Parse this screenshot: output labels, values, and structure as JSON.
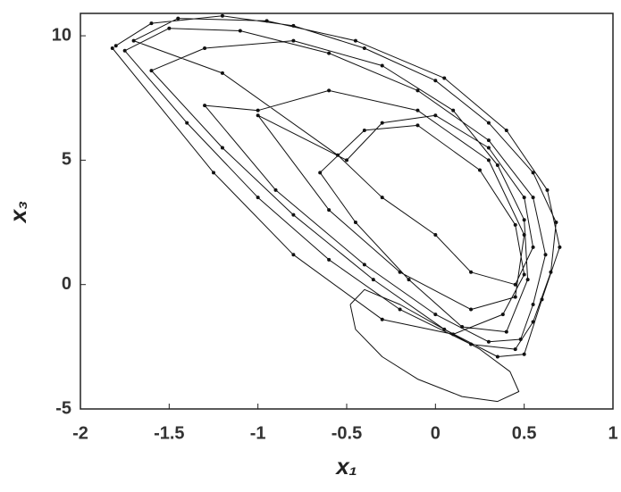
{
  "chart_data": {
    "type": "line",
    "xlabel": "x₁",
    "ylabel": "x₃",
    "xlim": [
      -2,
      1
    ],
    "ylim": [
      -5,
      10.9
    ],
    "xticks": [
      -2,
      -1.5,
      -1,
      -0.5,
      0,
      0.5,
      1
    ],
    "yticks": [
      -5,
      0,
      5,
      10
    ],
    "series": [
      {
        "color": "#111111",
        "marker": true,
        "x": [
          -1.8,
          -1.6,
          -1.2,
          -0.8,
          -0.4,
          0,
          0.3,
          0.55,
          0.68,
          0.65,
          0.55,
          0.45,
          0.2,
          -0.2,
          -0.6,
          -1.0,
          -1.4,
          -1.75,
          -1.5,
          -1.1,
          -0.6,
          -0.1,
          0.3,
          0.55,
          0.62,
          0.55,
          0.48,
          0.3,
          0,
          -0.4,
          -0.9,
          -1.3,
          -1.0,
          -0.6,
          -0.1,
          0.3,
          0.5,
          0.45,
          0.2,
          -0.2,
          -0.6,
          -1.0,
          -0.5,
          -0.3,
          0,
          0.3,
          0.5,
          0.55,
          0.45,
          0.2,
          0,
          -0.3,
          -0.55,
          -1.2,
          -1.7,
          -1.45,
          -0.95,
          -0.45,
          0.05,
          0.4,
          0.63,
          0.7,
          0.6,
          0.5,
          0.35,
          0.05,
          -0.35,
          -0.8,
          -1.2,
          -1.6,
          -1.3,
          -0.8,
          -0.3,
          0.1,
          0.35,
          0.5,
          0.52,
          0.4,
          0.15,
          -0.15,
          -0.45,
          -0.65,
          -0.4,
          -0.1,
          0.25,
          0.45,
          0.5,
          0.38,
          0.1,
          -0.3,
          -0.8,
          -1.25,
          -1.82
        ],
        "values": [
          9.6,
          10.5,
          10.8,
          10.4,
          9.5,
          8.2,
          6.5,
          4.5,
          2.5,
          0.5,
          -1.5,
          -2.6,
          -2.4,
          -1,
          1,
          3.5,
          6.5,
          9.4,
          10.3,
          10.2,
          9.3,
          7.8,
          5.8,
          3.5,
          1.2,
          -0.8,
          -2.2,
          -2.3,
          -1.2,
          0.8,
          3.8,
          7.2,
          7,
          7.8,
          7,
          5,
          2,
          -0.5,
          -1,
          0.5,
          3,
          6.8,
          5,
          6.5,
          6.8,
          5.5,
          3.5,
          1.5,
          0,
          0.5,
          2,
          3.5,
          5.2,
          8.5,
          9.8,
          10.7,
          10.6,
          9.8,
          8.3,
          6.2,
          3.8,
          1.5,
          -0.6,
          -2.8,
          -2.9,
          -1.8,
          0.2,
          2.8,
          5.5,
          8.6,
          9.5,
          9.8,
          8.8,
          7,
          4.8,
          2.6,
          0.2,
          -1.9,
          -1.7,
          0.2,
          2.5,
          4.5,
          6.2,
          6.4,
          4.6,
          2.4,
          0.4,
          -1.2,
          -2,
          -1.4,
          1.2,
          4.5,
          9.5
        ]
      },
      {
        "color": "#111111",
        "marker": false,
        "x": [
          -0.48,
          -0.45,
          -0.3,
          -0.1,
          0.15,
          0.35,
          0.47,
          0.42,
          0.25,
          0.0,
          -0.2,
          -0.4,
          -0.48
        ],
        "values": [
          -0.8,
          -1.8,
          -2.9,
          -3.8,
          -4.5,
          -4.7,
          -4.3,
          -3.5,
          -2.6,
          -1.6,
          -0.8,
          -0.2,
          -0.8
        ]
      }
    ]
  }
}
